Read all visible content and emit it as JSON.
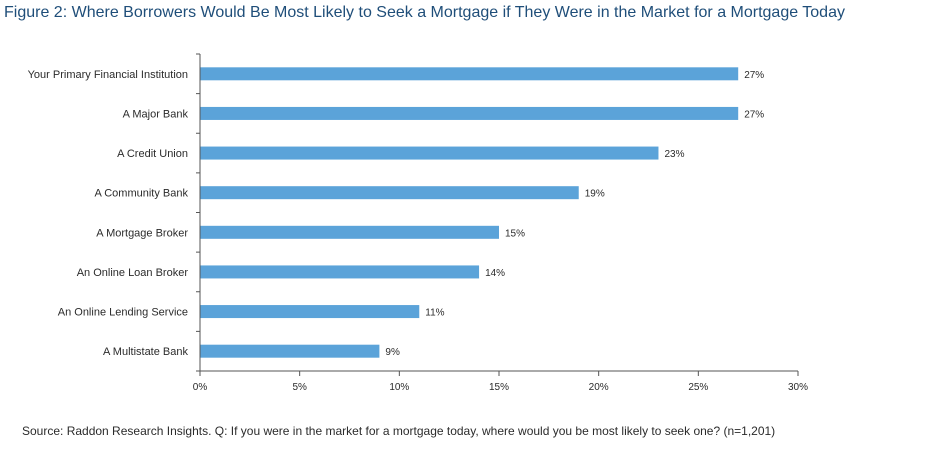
{
  "title": "Figure 2: Where Borrowers Would Be Most Likely to Seek a Mortgage if They Were in the Market for a Mortgage Today",
  "source": "Source: Raddon Research Insights. Q: If you were in the market for a mortgage today, where would you be most likely to seek one? (n=1,201)",
  "colors": {
    "bar": "#5ba3d9",
    "axis": "#555555",
    "title": "#1f4e79",
    "text": "#2b2b2b"
  },
  "chart_data": {
    "type": "bar",
    "orientation": "horizontal",
    "categories": [
      "Your Primary Financial Institution",
      "A Major Bank",
      "A Credit Union",
      "A Community Bank",
      "A Mortgage Broker",
      "An Online Loan Broker",
      "An Online Lending Service",
      "A Multistate Bank"
    ],
    "values": [
      27,
      27,
      23,
      19,
      15,
      14,
      11,
      9
    ],
    "value_labels": [
      "27%",
      "27%",
      "23%",
      "19%",
      "15%",
      "14%",
      "11%",
      "9%"
    ],
    "xlim": [
      0,
      30
    ],
    "xticks": [
      0,
      5,
      10,
      15,
      20,
      25,
      30
    ],
    "xtick_labels": [
      "0%",
      "5%",
      "10%",
      "15%",
      "20%",
      "25%",
      "30%"
    ],
    "grid": false,
    "legend": "none"
  }
}
